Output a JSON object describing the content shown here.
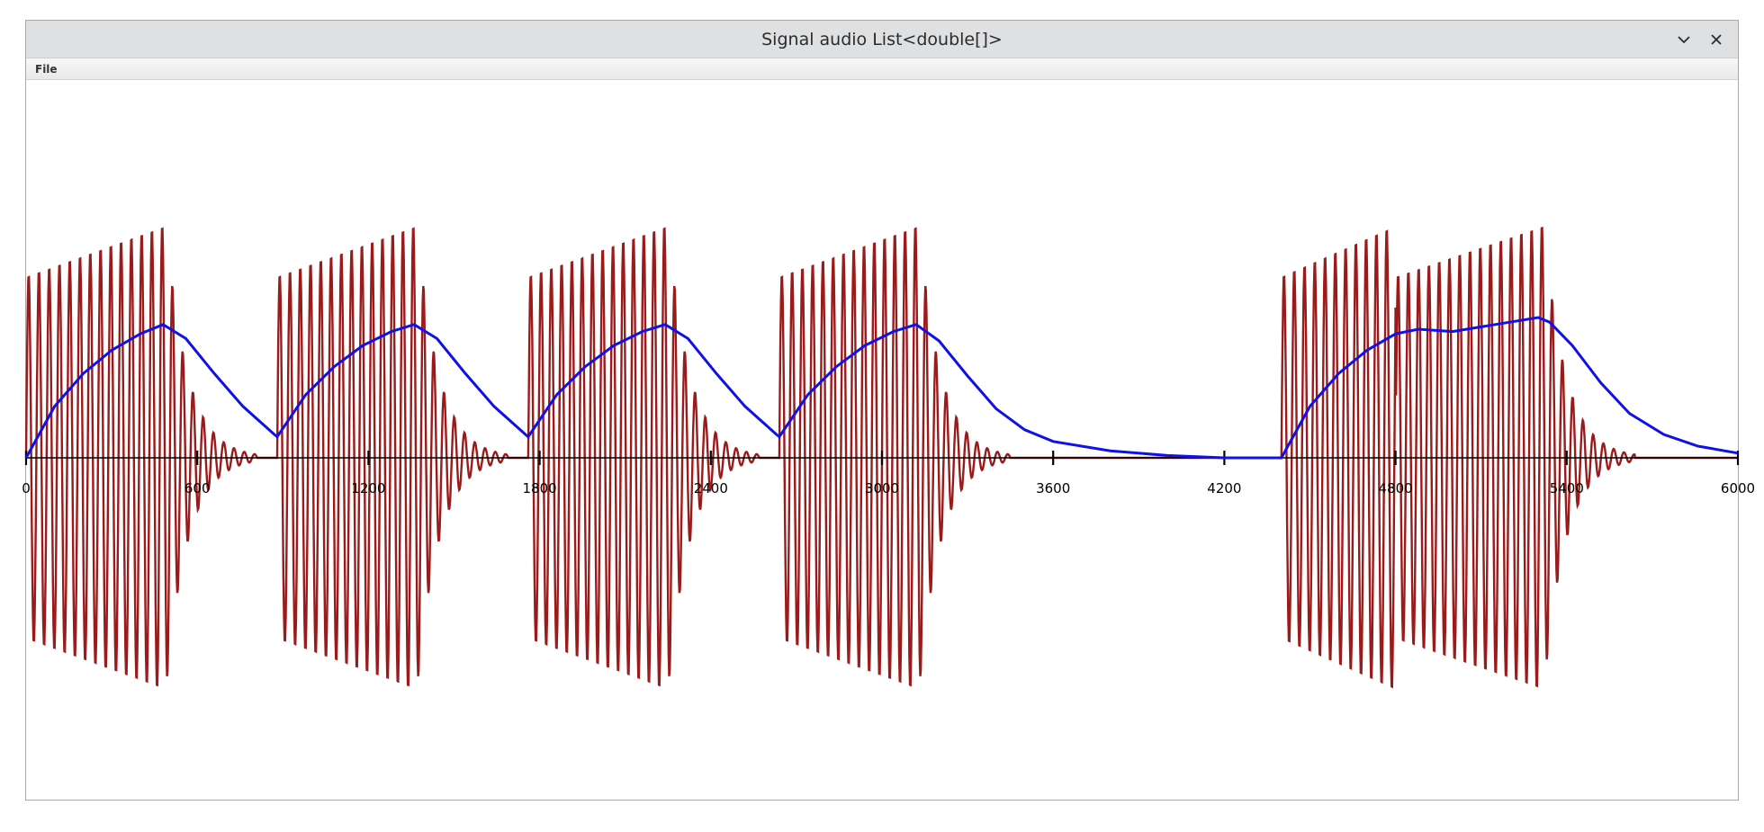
{
  "window": {
    "title": "Signal audio List<double[]>",
    "menu": [
      "File"
    ]
  },
  "chart_data": {
    "type": "line",
    "title": "",
    "xlabel": "",
    "ylabel": "",
    "xlim": [
      0,
      6000
    ],
    "ylim": [
      -1.05,
      1.05
    ],
    "x_ticks": [
      0,
      600,
      1200,
      1800,
      2400,
      3000,
      3600,
      4200,
      4800,
      5400,
      6000
    ],
    "x_tick_labels": [
      "0",
      "600",
      "1200",
      "1800",
      "2400",
      "3000",
      "3600",
      "4200",
      "4800",
      "5400",
      "6000"
    ],
    "grid": false,
    "legend": "none",
    "series": [
      {
        "color": "#9b1b1b",
        "kind": "oscillating bursts",
        "bursts": [
          {
            "x_start": 0,
            "x_end": 490,
            "amp_start": 0.78,
            "amp_end": 1.0
          },
          {
            "x_start": 880,
            "x_end": 1370,
            "amp_start": 0.78,
            "amp_end": 1.0
          },
          {
            "x_start": 1760,
            "x_end": 2250,
            "amp_start": 0.78,
            "amp_end": 1.0
          },
          {
            "x_start": 2640,
            "x_end": 3130,
            "amp_start": 0.78,
            "amp_end": 1.0
          },
          {
            "x_start": 4400,
            "x_end": 4800,
            "amp_start": 0.78,
            "amp_end": 1.0
          },
          {
            "x_start": 4800,
            "x_end": 5320,
            "amp_start": 0.78,
            "amp_end": 1.0
          }
        ],
        "period": 36
      },
      {
        "color": "#1010e8",
        "kind": "envelope",
        "points": [
          [
            0,
            0.0
          ],
          [
            100,
            0.22
          ],
          [
            200,
            0.36
          ],
          [
            300,
            0.46
          ],
          [
            400,
            0.53
          ],
          [
            480,
            0.57
          ],
          [
            560,
            0.51
          ],
          [
            660,
            0.36
          ],
          [
            760,
            0.22
          ],
          [
            870,
            0.1
          ],
          [
            880,
            0.09
          ],
          [
            980,
            0.27
          ],
          [
            1080,
            0.39
          ],
          [
            1180,
            0.48
          ],
          [
            1280,
            0.54
          ],
          [
            1360,
            0.57
          ],
          [
            1440,
            0.51
          ],
          [
            1540,
            0.36
          ],
          [
            1640,
            0.22
          ],
          [
            1750,
            0.1
          ],
          [
            1760,
            0.09
          ],
          [
            1860,
            0.27
          ],
          [
            1960,
            0.39
          ],
          [
            2060,
            0.48
          ],
          [
            2160,
            0.54
          ],
          [
            2240,
            0.57
          ],
          [
            2320,
            0.51
          ],
          [
            2420,
            0.36
          ],
          [
            2520,
            0.22
          ],
          [
            2630,
            0.1
          ],
          [
            2640,
            0.09
          ],
          [
            2740,
            0.27
          ],
          [
            2840,
            0.39
          ],
          [
            2940,
            0.48
          ],
          [
            3040,
            0.54
          ],
          [
            3120,
            0.57
          ],
          [
            3200,
            0.5
          ],
          [
            3300,
            0.35
          ],
          [
            3400,
            0.21
          ],
          [
            3500,
            0.12
          ],
          [
            3600,
            0.07
          ],
          [
            3800,
            0.03
          ],
          [
            4000,
            0.01
          ],
          [
            4200,
            0.0
          ],
          [
            4400,
            0.0
          ],
          [
            4500,
            0.22
          ],
          [
            4600,
            0.36
          ],
          [
            4700,
            0.46
          ],
          [
            4800,
            0.53
          ],
          [
            4880,
            0.55
          ],
          [
            5000,
            0.54
          ],
          [
            5100,
            0.56
          ],
          [
            5200,
            0.58
          ],
          [
            5300,
            0.6
          ],
          [
            5340,
            0.58
          ],
          [
            5420,
            0.48
          ],
          [
            5520,
            0.32
          ],
          [
            5620,
            0.19
          ],
          [
            5740,
            0.1
          ],
          [
            5860,
            0.05
          ],
          [
            6000,
            0.02
          ]
        ]
      }
    ]
  }
}
